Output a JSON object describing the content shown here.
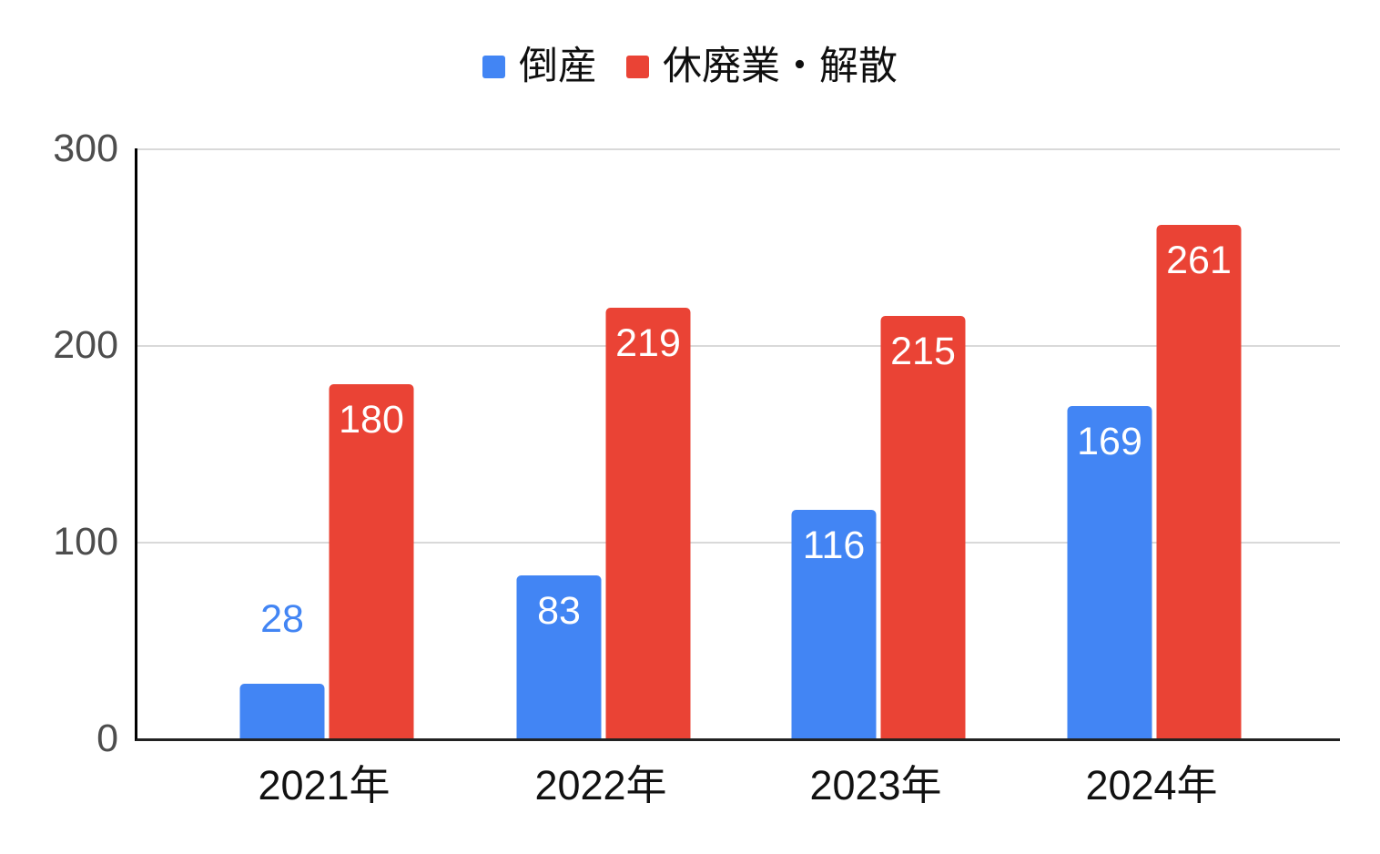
{
  "chart_data": {
    "type": "bar",
    "title": "",
    "categories": [
      "2021年",
      "2022年",
      "2023年",
      "2024年"
    ],
    "series": [
      {
        "name": "倒産",
        "color": "#4285F4",
        "values": [
          28,
          83,
          116,
          169
        ]
      },
      {
        "name": "休廃業・解散",
        "color": "#EA4335",
        "values": [
          180,
          219,
          215,
          261
        ]
      }
    ],
    "ylim": [
      0,
      300
    ],
    "yticks": [
      0,
      100,
      200,
      300
    ],
    "grid": true,
    "legend_position": "top",
    "value_labels": true,
    "axis_colors": {
      "grid": "#d9d9d9",
      "axis": "#222222",
      "tick_text": "#4d4d4d"
    }
  }
}
